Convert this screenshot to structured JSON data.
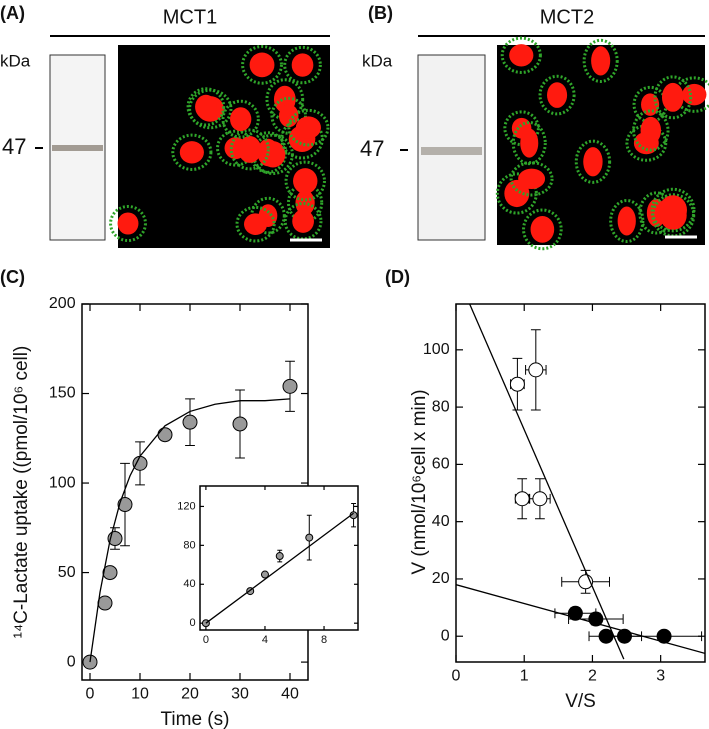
{
  "panel_labels": [
    "(A)",
    "(B)",
    "(C)",
    "(D)"
  ],
  "blots": [
    {
      "title": "MCT1",
      "unit": "kDa",
      "marker": "47"
    },
    {
      "title": "MCT2",
      "unit": "kDa",
      "marker": "47"
    }
  ],
  "chart_data": [
    {
      "type": "scatter",
      "xlabel": "Time (s)",
      "ylabel": "¹⁴C-Lactate uptake ((pmol/10⁶ cell)",
      "xlim": [
        -1.6,
        43.6
      ],
      "ylim": [
        -10,
        200
      ],
      "xticks": [
        0,
        10,
        20,
        30,
        40
      ],
      "yticks": [
        0,
        50,
        100,
        150,
        200
      ],
      "series": [
        {
          "type": "scatter",
          "color": "#999999",
          "x": [
            0,
            3,
            4,
            5,
            7,
            10,
            15,
            20,
            30,
            40
          ],
          "values": [
            0,
            33,
            50,
            69,
            88,
            111,
            127,
            134,
            133,
            154
          ],
          "y_errors": [
            null,
            null,
            null,
            6,
            23,
            12,
            null,
            13,
            19,
            14
          ]
        },
        {
          "type": "line",
          "color": "#000000",
          "x": [
            0,
            2,
            4,
            6,
            8,
            10,
            15,
            20,
            25,
            30,
            35,
            40
          ],
          "values": [
            0,
            39,
            68,
            89,
            104,
            115,
            132,
            140,
            144,
            146,
            146,
            147
          ]
        }
      ]
    },
    {
      "type": "scatter",
      "xlim": [
        -0.4,
        10.3
      ],
      "ylim": [
        -7,
        141
      ],
      "xticks": [
        0,
        4,
        8
      ],
      "yticks": [
        0,
        40,
        80,
        120
      ],
      "series": [
        {
          "type": "scatter",
          "color": "#999999",
          "x": [
            0,
            3,
            4,
            5,
            7,
            10
          ],
          "values": [
            0,
            33,
            50,
            69,
            88,
            111
          ],
          "y_errors": [
            null,
            null,
            null,
            6,
            23,
            12
          ]
        },
        {
          "type": "line",
          "color": "#000000",
          "x": [
            0,
            10
          ],
          "values": [
            0,
            113
          ]
        }
      ]
    },
    {
      "type": "scatter",
      "xlabel": "V/S",
      "ylabel": "V (nmol/10⁶cell x min)",
      "xlim": [
        0,
        3.65
      ],
      "ylim": [
        -9,
        116
      ],
      "xticks": [
        0,
        1,
        2,
        3
      ],
      "yticks": [
        0,
        20,
        40,
        60,
        80,
        100
      ],
      "series": [
        {
          "type": "scatter",
          "color": "#ffffff",
          "x": [
            0.9,
            1.17,
            0.97,
            1.23,
            1.9
          ],
          "values": [
            88,
            93,
            48,
            48,
            19
          ],
          "x_errors": [
            0.1,
            0.15,
            0.1,
            0.15,
            0.35
          ],
          "y_errors": [
            9,
            14,
            7,
            7,
            4
          ]
        },
        {
          "type": "scatter",
          "color": "#000000",
          "x": [
            1.75,
            2.05,
            2.2,
            2.47,
            3.05
          ],
          "values": [
            8,
            6,
            0,
            0,
            0
          ],
          "x_errors": [
            0.3,
            0.4,
            0.25,
            0.25,
            0.55
          ],
          "y_errors": [
            2,
            2,
            1,
            1,
            1
          ]
        },
        {
          "type": "line",
          "color": "#000000",
          "x": [
            0.2,
            2.46
          ],
          "values": [
            116,
            -8
          ]
        },
        {
          "type": "line",
          "color": "#000000",
          "x": [
            0,
            3.65
          ],
          "values": [
            18,
            -6
          ]
        }
      ]
    }
  ]
}
